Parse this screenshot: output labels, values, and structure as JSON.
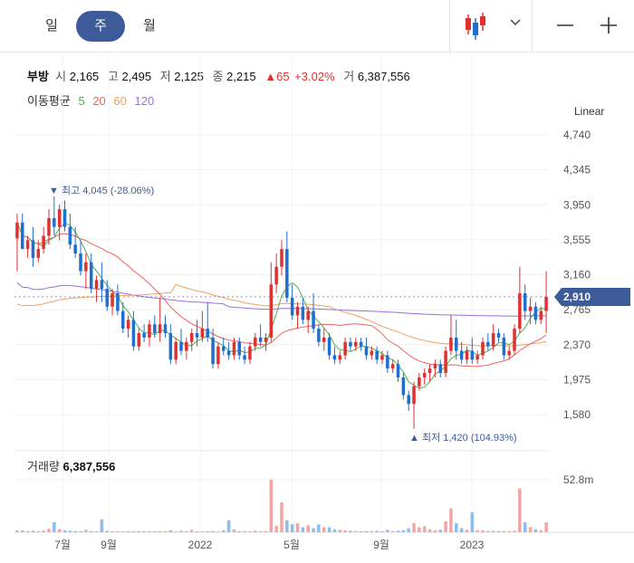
{
  "tabs": [
    {
      "label": "일",
      "active": false
    },
    {
      "label": "주",
      "active": true
    },
    {
      "label": "월",
      "active": false
    }
  ],
  "toolbar": {
    "chart_type_icon": "candlestick-icon",
    "dropdown_icon": "chevron-down-icon",
    "zoom_out_icon": "minus-icon",
    "zoom_in_icon": "plus-icon"
  },
  "info": {
    "name": "부방",
    "open_label": "시",
    "open": "2,165",
    "high_label": "고",
    "high": "2,495",
    "low_label": "저",
    "low": "2,125",
    "close_label": "종",
    "close": "2,215",
    "change": "▲65",
    "change_pct": "+3.02%",
    "volume_label": "거",
    "volume": "6,387,556"
  },
  "ma": {
    "label": "이동평균",
    "periods": [
      {
        "label": "5",
        "color": "#4caf50"
      },
      {
        "label": "20",
        "color": "#f06060"
      },
      {
        "label": "60",
        "color": "#f0a060"
      },
      {
        "label": "120",
        "color": "#9b6ee0"
      }
    ]
  },
  "scale_label": "Linear",
  "volume_panel": {
    "label": "거래량",
    "value": "6,387,556",
    "max_tick": "52.8m"
  },
  "chart_data": {
    "type": "candlestick",
    "period": "weekly",
    "y_ticks": [
      "4,740",
      "4,345",
      "3,950",
      "3,555",
      "3,160",
      "2,765",
      "2,370",
      "1,975",
      "1,580"
    ],
    "y_range": [
      1420,
      4740
    ],
    "x_ticks": [
      "7월",
      "9월",
      "2022",
      "5월",
      "9월",
      "2023"
    ],
    "current_price": "2,910",
    "high_annotation": {
      "label": "최고",
      "value": "4,045",
      "pct": "(-28.06%)"
    },
    "low_annotation": {
      "label": "최저",
      "value": "1,420",
      "pct": "(104.93%)"
    },
    "colors": {
      "up": "#e03131",
      "down": "#1f6fd1",
      "vol_up": "#f3a5a5",
      "vol_down": "#8fbcef"
    },
    "candles": [
      [
        3570,
        3850,
        3200,
        3750
      ],
      [
        3750,
        3850,
        3450,
        3450
      ],
      [
        3450,
        3600,
        3350,
        3550
      ],
      [
        3550,
        3700,
        3250,
        3350
      ],
      [
        3350,
        3550,
        3300,
        3450
      ],
      [
        3450,
        3700,
        3400,
        3600
      ],
      [
        3600,
        3900,
        3500,
        3800
      ],
      [
        3800,
        4045,
        3600,
        3700
      ],
      [
        3700,
        3950,
        3550,
        3900
      ],
      [
        3900,
        4000,
        3650,
        3700
      ],
      [
        3700,
        3850,
        3450,
        3500
      ],
      [
        3500,
        3700,
        3350,
        3400
      ],
      [
        3400,
        3550,
        3150,
        3200
      ],
      [
        3200,
        3400,
        3000,
        3300
      ],
      [
        3300,
        3400,
        2950,
        3000
      ],
      [
        3000,
        3150,
        2850,
        3100
      ],
      [
        3100,
        3300,
        2850,
        3000
      ],
      [
        3000,
        3100,
        2750,
        2800
      ],
      [
        2800,
        3000,
        2700,
        2950
      ],
      [
        2950,
        3050,
        2700,
        2750
      ],
      [
        2750,
        2850,
        2500,
        2550
      ],
      [
        2550,
        2700,
        2450,
        2650
      ],
      [
        2650,
        2750,
        2300,
        2350
      ],
      [
        2350,
        2550,
        2300,
        2500
      ],
      [
        2500,
        2600,
        2400,
        2450
      ],
      [
        2450,
        2650,
        2350,
        2600
      ],
      [
        2600,
        2700,
        2450,
        2500
      ],
      [
        2500,
        2900,
        2400,
        2600
      ],
      [
        2600,
        2700,
        2450,
        2500
      ],
      [
        2500,
        2600,
        2150,
        2200
      ],
      [
        2200,
        2450,
        2150,
        2400
      ],
      [
        2400,
        2550,
        2250,
        2300
      ],
      [
        2300,
        2450,
        2200,
        2400
      ],
      [
        2400,
        2550,
        2300,
        2500
      ],
      [
        2500,
        2650,
        2350,
        2450
      ],
      [
        2450,
        2750,
        2400,
        2550
      ],
      [
        2550,
        2850,
        2400,
        2450
      ],
      [
        2450,
        2550,
        2100,
        2150
      ],
      [
        2150,
        2400,
        2100,
        2350
      ],
      [
        2350,
        2450,
        2250,
        2300
      ],
      [
        2300,
        2400,
        2200,
        2250
      ],
      [
        2250,
        2450,
        2200,
        2400
      ],
      [
        2400,
        2450,
        2200,
        2250
      ],
      [
        2250,
        2350,
        2150,
        2200
      ],
      [
        2200,
        2400,
        2150,
        2350
      ],
      [
        2350,
        2500,
        2300,
        2450
      ],
      [
        2450,
        2600,
        2350,
        2400
      ],
      [
        2400,
        2500,
        2300,
        2450
      ],
      [
        2450,
        3300,
        2400,
        3050
      ],
      [
        3050,
        3400,
        2950,
        3250
      ],
      [
        3250,
        3550,
        3150,
        3450
      ],
      [
        3450,
        3650,
        2850,
        2900
      ],
      [
        2900,
        3050,
        2650,
        2700
      ],
      [
        2700,
        2850,
        2550,
        2800
      ],
      [
        2800,
        2900,
        2600,
        2650
      ],
      [
        2650,
        2800,
        2500,
        2750
      ],
      [
        2750,
        2950,
        2500,
        2550
      ],
      [
        2550,
        2600,
        2350,
        2400
      ],
      [
        2400,
        2550,
        2300,
        2450
      ],
      [
        2450,
        2500,
        2200,
        2250
      ],
      [
        2250,
        2350,
        2150,
        2200
      ],
      [
        2200,
        2300,
        2150,
        2250
      ],
      [
        2250,
        2450,
        2200,
        2400
      ],
      [
        2400,
        2450,
        2300,
        2350
      ],
      [
        2350,
        2450,
        2300,
        2400
      ],
      [
        2400,
        2450,
        2300,
        2350
      ],
      [
        2350,
        2450,
        2200,
        2250
      ],
      [
        2250,
        2350,
        2200,
        2300
      ],
      [
        2300,
        2350,
        2150,
        2200
      ],
      [
        2200,
        2300,
        2150,
        2250
      ],
      [
        2250,
        2300,
        2050,
        2100
      ],
      [
        2100,
        2200,
        2050,
        2150
      ],
      [
        2150,
        2200,
        1950,
        2000
      ],
      [
        2000,
        2050,
        1750,
        1800
      ],
      [
        1800,
        1850,
        1620,
        1700
      ],
      [
        1700,
        1950,
        1420,
        1900
      ],
      [
        1900,
        2050,
        1850,
        2000
      ],
      [
        2000,
        2100,
        1920,
        2050
      ],
      [
        2050,
        2150,
        1950,
        2100
      ],
      [
        2100,
        2200,
        2000,
        2150
      ],
      [
        2150,
        2200,
        2000,
        2050
      ],
      [
        2050,
        2350,
        2000,
        2300
      ],
      [
        2300,
        2700,
        2250,
        2450
      ],
      [
        2450,
        2650,
        2200,
        2300
      ],
      [
        2300,
        2400,
        2150,
        2200
      ],
      [
        2200,
        2350,
        2150,
        2300
      ],
      [
        2300,
        2450,
        2150,
        2200
      ],
      [
        2200,
        2300,
        2150,
        2250
      ],
      [
        2250,
        2450,
        2200,
        2400
      ],
      [
        2400,
        2500,
        2300,
        2350
      ],
      [
        2350,
        2600,
        2300,
        2500
      ],
      [
        2500,
        2550,
        2400,
        2450
      ],
      [
        2450,
        2500,
        2200,
        2250
      ],
      [
        2250,
        2350,
        2200,
        2300
      ],
      [
        2300,
        2600,
        2250,
        2550
      ],
      [
        2550,
        3250,
        2500,
        2950
      ],
      [
        2950,
        3050,
        2650,
        2750
      ],
      [
        2750,
        2900,
        2600,
        2800
      ],
      [
        2800,
        2850,
        2600,
        2650
      ],
      [
        2650,
        2800,
        2600,
        2750
      ],
      [
        2750,
        3200,
        2500,
        2910
      ]
    ],
    "volume": [
      2.0,
      1.8,
      1.2,
      1.5,
      1.0,
      1.6,
      3.5,
      10.0,
      3.2,
      2.0,
      1.5,
      1.2,
      1.0,
      2.4,
      1.1,
      1.0,
      13.0,
      1.4,
      1.0,
      0.9,
      0.8,
      1.0,
      0.9,
      1.2,
      1.0,
      1.1,
      1.0,
      1.2,
      0.9,
      1.8,
      0.8,
      1.4,
      1.0,
      2.3,
      0.9,
      1.0,
      1.0,
      1.1,
      0.8,
      2.0,
      12.0,
      2.8,
      1.0,
      1.1,
      1.0,
      1.6,
      0.9,
      1.2,
      52.8,
      6.5,
      30.0,
      12.0,
      8.0,
      9.0,
      5.0,
      7.0,
      4.0,
      8.0,
      5.0,
      5.0,
      3.0,
      2.5,
      1.8,
      1.5,
      1.2,
      1.0,
      1.1,
      1.2,
      1.4,
      1.0,
      2.4,
      1.1,
      1.5,
      2.0,
      4.0,
      9.0,
      5.0,
      6.0,
      3.0,
      2.0,
      2.5,
      11.0,
      24.0,
      9.0,
      4.0,
      2.5,
      20.0,
      2.0,
      1.8,
      1.0,
      1.5,
      1.2,
      1.0,
      1.2,
      1.5,
      44.0,
      10.0,
      5.0,
      3.0,
      2.0,
      10.0
    ]
  }
}
